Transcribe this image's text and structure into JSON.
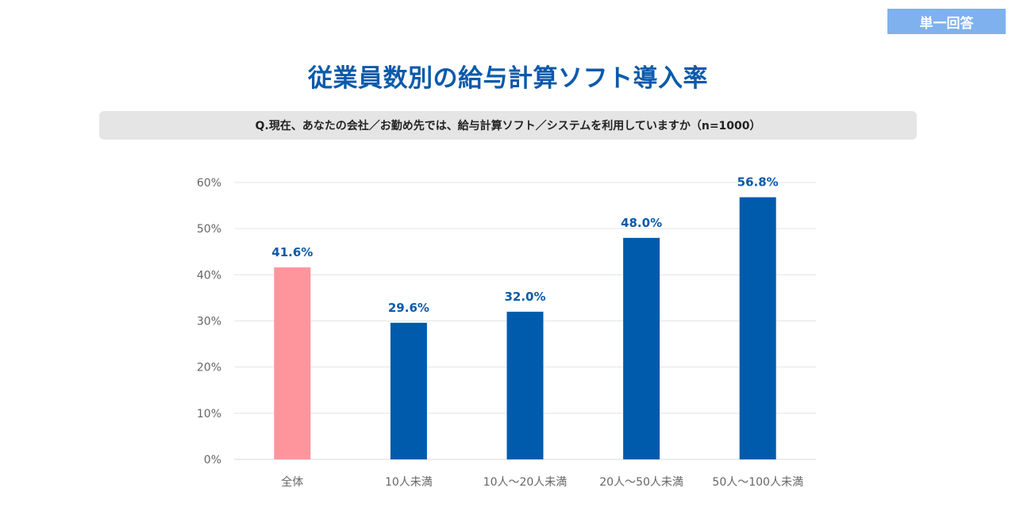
{
  "badge": {
    "label": "単一回答"
  },
  "title": "従業員数別の給与計算ソフト導入率",
  "question": "Q.現在、あなたの会社／お勤め先では、給与計算ソフト／システムを利用していますか（n=1000）",
  "colors": {
    "highlight_bar": "#fe959c",
    "bar": "#005bac",
    "value_label": "#0a5aab",
    "grid": "#e4e4e4",
    "axis_line": "#d9d9d9",
    "tick_label": "#666666",
    "badge_bg": "#7fb1ee"
  },
  "chart_data": {
    "type": "bar",
    "categories": [
      "全体",
      "10人未満",
      "10人～20人未満",
      "20人～50人未満",
      "50人～100人未満"
    ],
    "values": [
      41.6,
      29.6,
      32.0,
      48.0,
      56.8
    ],
    "value_labels": [
      "41.6%",
      "29.6%",
      "32.0%",
      "48.0%",
      "56.8%"
    ],
    "highlight_index": 0,
    "ylim": [
      0,
      60
    ],
    "yticks": [
      0,
      10,
      20,
      30,
      40,
      50,
      60
    ],
    "ytick_labels": [
      "0%",
      "10%",
      "20%",
      "30%",
      "40%",
      "50%",
      "60%"
    ],
    "grid": true
  }
}
